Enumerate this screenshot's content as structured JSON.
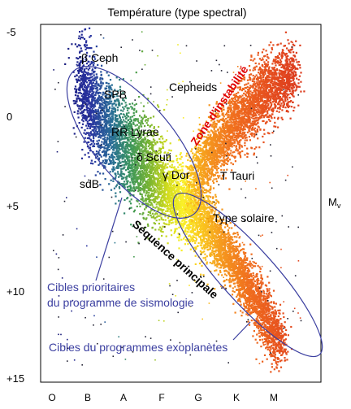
{
  "chart_data": {
    "type": "scatter",
    "title": "Température (type spectral)",
    "ylabel": "Mv",
    "ylim": [
      -5,
      15
    ],
    "y_inverted": true,
    "yticks": [
      "-5",
      "0",
      "+5",
      "+10",
      "+15"
    ],
    "x_categories": [
      "O",
      "B",
      "A",
      "F",
      "G",
      "K",
      "M"
    ],
    "series": [
      {
        "kind": "main sequence (dense band)",
        "points_spectral_index_vs_Mv": [
          [
            0.7,
            -2.5
          ],
          [
            0.9,
            -1.5
          ],
          [
            1.1,
            -0.5
          ],
          [
            1.4,
            0.3
          ],
          [
            1.7,
            1.0
          ],
          [
            2.0,
            1.7
          ],
          [
            2.3,
            2.3
          ],
          [
            2.6,
            2.9
          ],
          [
            2.9,
            3.6
          ],
          [
            3.2,
            4.1
          ],
          [
            3.5,
            4.7
          ],
          [
            3.8,
            5.3
          ],
          [
            4.1,
            5.9
          ],
          [
            4.4,
            6.7
          ],
          [
            4.7,
            7.6
          ],
          [
            5.0,
            8.5
          ],
          [
            5.3,
            9.6
          ],
          [
            5.6,
            10.6
          ],
          [
            5.9,
            11.8
          ],
          [
            6.2,
            13.0
          ]
        ]
      },
      {
        "kind": "giant branch",
        "points_spectral_index_vs_Mv": [
          [
            3.8,
            3.5
          ],
          [
            4.1,
            2.5
          ],
          [
            4.4,
            1.6
          ],
          [
            4.7,
            0.8
          ],
          [
            5.0,
            0.1
          ],
          [
            5.3,
            -0.6
          ],
          [
            5.6,
            -1.3
          ],
          [
            5.9,
            -1.8
          ],
          [
            6.2,
            -2.2
          ],
          [
            6.5,
            -2.6
          ]
        ]
      }
    ]
  },
  "annotations": {
    "beta_ceph": "β Ceph",
    "spb": "SPB",
    "cepheids": "Cepheids",
    "rr_lyrae": "RR Lyrae",
    "delta_scuti": "δ Scuti",
    "gamma_dor": "γ Dor",
    "sdb": "sdB",
    "t_tauri": "T Tauri",
    "type_solaire": "Type solaire",
    "zone_instabilite": "Zone d'instabilité",
    "sequence_principale": "Séquence principale",
    "cibles_sismo_1": "Cibles prioritaires",
    "cibles_sismo_2": "du programme de sismologie",
    "cibles_exo": "Cibles du programmes exoplanètes",
    "mv_base": "M",
    "mv_sub": "v"
  },
  "colors": {
    "target_outline": "#3b3fa0",
    "instability_label": "#e00000",
    "sun_marker": "#e08000"
  }
}
